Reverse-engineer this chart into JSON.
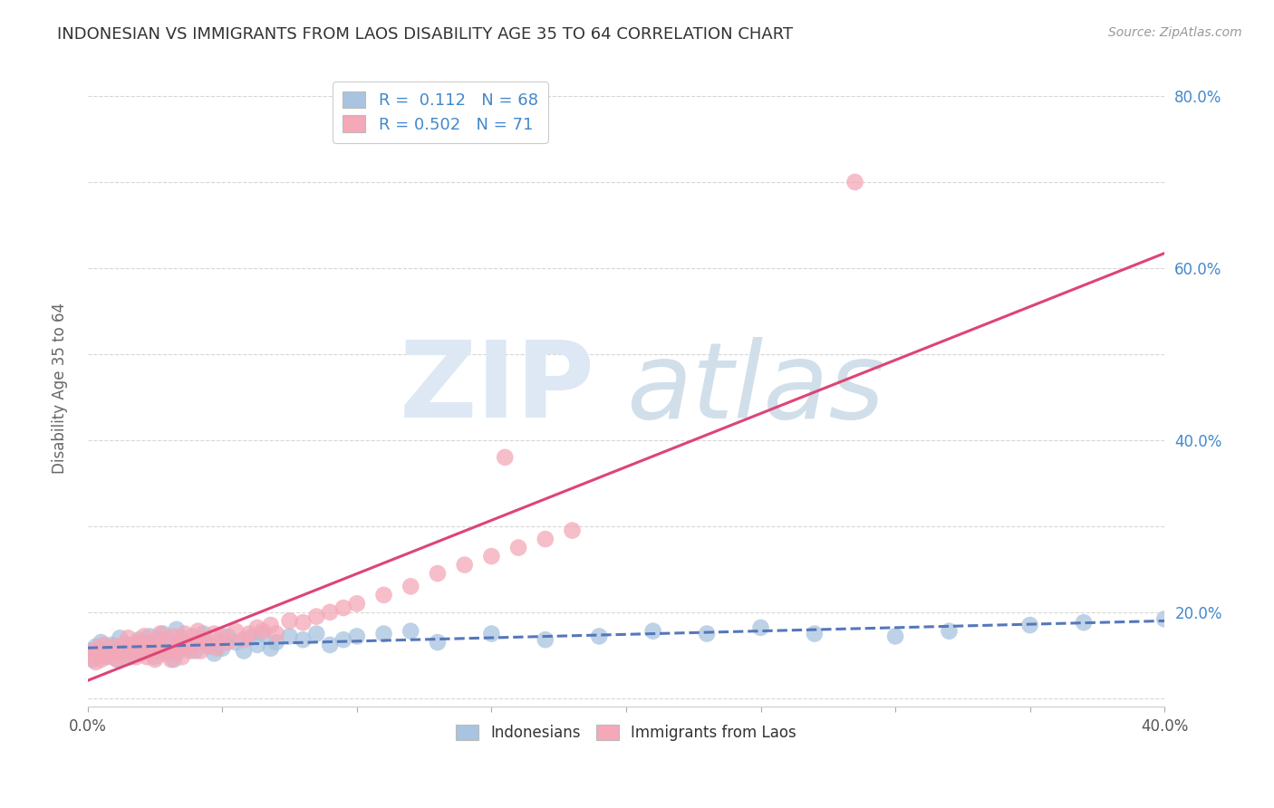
{
  "title": "INDONESIAN VS IMMIGRANTS FROM LAOS DISABILITY AGE 35 TO 64 CORRELATION CHART",
  "source": "Source: ZipAtlas.com",
  "ylabel": "Disability Age 35 to 64",
  "xlim": [
    0.0,
    0.4
  ],
  "ylim": [
    0.09,
    0.83
  ],
  "xticks": [
    0.0,
    0.05,
    0.1,
    0.15,
    0.2,
    0.25,
    0.3,
    0.35,
    0.4
  ],
  "xticklabels": [
    "0.0%",
    "",
    "",
    "",
    "",
    "",
    "",
    "",
    "40.0%"
  ],
  "yticks": [
    0.1,
    0.2,
    0.3,
    0.4,
    0.5,
    0.6,
    0.7,
    0.8
  ],
  "yticklabels": [
    "",
    "20.0%",
    "",
    "40.0%",
    "",
    "60.0%",
    "",
    "80.0%"
  ],
  "r_indonesian": "0.112",
  "n_indonesian": "68",
  "r_laos": "0.502",
  "n_laos": "71",
  "blue_color": "#a8c4e0",
  "pink_color": "#f4a8b8",
  "blue_line_color": "#5577bb",
  "pink_line_color": "#dd4477",
  "indonesians_x": [
    0.001,
    0.002,
    0.003,
    0.005,
    0.005,
    0.007,
    0.008,
    0.009,
    0.01,
    0.011,
    0.012,
    0.013,
    0.015,
    0.016,
    0.018,
    0.019,
    0.02,
    0.021,
    0.022,
    0.023,
    0.025,
    0.026,
    0.027,
    0.028,
    0.03,
    0.031,
    0.032,
    0.033,
    0.034,
    0.035,
    0.036,
    0.038,
    0.04,
    0.042,
    0.043,
    0.045,
    0.047,
    0.048,
    0.05,
    0.052,
    0.055,
    0.058,
    0.06,
    0.063,
    0.065,
    0.068,
    0.07,
    0.075,
    0.08,
    0.085,
    0.09,
    0.095,
    0.1,
    0.11,
    0.12,
    0.13,
    0.15,
    0.17,
    0.19,
    0.21,
    0.23,
    0.25,
    0.27,
    0.3,
    0.32,
    0.35,
    0.37,
    0.4
  ],
  "indonesians_y": [
    0.155,
    0.145,
    0.16,
    0.15,
    0.165,
    0.148,
    0.155,
    0.162,
    0.158,
    0.145,
    0.17,
    0.155,
    0.162,
    0.148,
    0.155,
    0.168,
    0.152,
    0.165,
    0.158,
    0.172,
    0.148,
    0.155,
    0.168,
    0.175,
    0.152,
    0.165,
    0.145,
    0.18,
    0.155,
    0.17,
    0.162,
    0.158,
    0.155,
    0.168,
    0.175,
    0.16,
    0.152,
    0.165,
    0.158,
    0.172,
    0.165,
    0.155,
    0.17,
    0.162,
    0.175,
    0.158,
    0.165,
    0.172,
    0.168,
    0.175,
    0.162,
    0.168,
    0.172,
    0.175,
    0.178,
    0.165,
    0.175,
    0.168,
    0.172,
    0.178,
    0.175,
    0.182,
    0.175,
    0.172,
    0.178,
    0.185,
    0.188,
    0.192
  ],
  "laos_x": [
    0.001,
    0.002,
    0.003,
    0.004,
    0.005,
    0.006,
    0.007,
    0.008,
    0.009,
    0.01,
    0.011,
    0.012,
    0.013,
    0.014,
    0.015,
    0.016,
    0.017,
    0.018,
    0.019,
    0.02,
    0.021,
    0.022,
    0.023,
    0.024,
    0.025,
    0.026,
    0.027,
    0.028,
    0.029,
    0.03,
    0.031,
    0.032,
    0.033,
    0.034,
    0.035,
    0.036,
    0.037,
    0.038,
    0.039,
    0.04,
    0.041,
    0.042,
    0.043,
    0.045,
    0.047,
    0.048,
    0.05,
    0.052,
    0.055,
    0.058,
    0.06,
    0.063,
    0.065,
    0.068,
    0.07,
    0.075,
    0.08,
    0.085,
    0.09,
    0.095,
    0.1,
    0.11,
    0.12,
    0.13,
    0.14,
    0.15,
    0.16,
    0.17,
    0.18,
    0.285,
    0.155
  ],
  "laos_y": [
    0.148,
    0.155,
    0.142,
    0.158,
    0.145,
    0.162,
    0.15,
    0.155,
    0.148,
    0.16,
    0.145,
    0.155,
    0.162,
    0.148,
    0.17,
    0.155,
    0.162,
    0.148,
    0.165,
    0.155,
    0.172,
    0.148,
    0.158,
    0.165,
    0.145,
    0.162,
    0.175,
    0.152,
    0.168,
    0.155,
    0.145,
    0.172,
    0.158,
    0.165,
    0.148,
    0.175,
    0.162,
    0.155,
    0.172,
    0.165,
    0.178,
    0.155,
    0.168,
    0.162,
    0.175,
    0.158,
    0.172,
    0.165,
    0.178,
    0.168,
    0.175,
    0.182,
    0.178,
    0.185,
    0.175,
    0.19,
    0.188,
    0.195,
    0.2,
    0.205,
    0.21,
    0.22,
    0.23,
    0.245,
    0.255,
    0.265,
    0.275,
    0.285,
    0.295,
    0.7,
    0.38
  ]
}
